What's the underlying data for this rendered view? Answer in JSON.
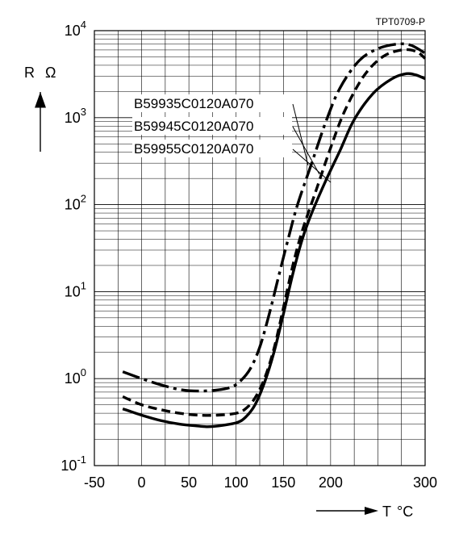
{
  "chart_data": {
    "type": "line",
    "title": "",
    "figure_id": "TPT0709-P",
    "y_scale": "log",
    "xlabel": "T",
    "xlabel_unit": "°C",
    "ylabel": "R",
    "ylabel_unit": "Ω",
    "xlim": [
      -50,
      300
    ],
    "ylim": [
      0.1,
      10000
    ],
    "grid": true,
    "x_ticks": [
      {
        "value": -50,
        "label": "-50"
      },
      {
        "value": 0,
        "label": "0"
      },
      {
        "value": 50,
        "label": "50"
      },
      {
        "value": 100,
        "label": "100"
      },
      {
        "value": 150,
        "label": "150"
      },
      {
        "value": 200,
        "label": "200"
      },
      {
        "value": 300,
        "label": "300"
      }
    ],
    "y_ticks": [
      {
        "value": 0.1,
        "base": "10",
        "exp": "-1"
      },
      {
        "value": 1,
        "base": "10",
        "exp": "0"
      },
      {
        "value": 10,
        "base": "10",
        "exp": "1"
      },
      {
        "value": 100,
        "base": "10",
        "exp": "2"
      },
      {
        "value": 1000,
        "base": "10",
        "exp": "3"
      },
      {
        "value": 10000,
        "base": "10",
        "exp": "4"
      }
    ],
    "series": [
      {
        "name": "B59935C0120A070",
        "style": "dash-dot",
        "x": [
          -20,
          0,
          20,
          40,
          60,
          80,
          95,
          105,
          115,
          125,
          135,
          145,
          155,
          165,
          180,
          195,
          210,
          230,
          250,
          270,
          285,
          300
        ],
        "y": [
          1.2,
          1.0,
          0.85,
          0.75,
          0.72,
          0.74,
          0.8,
          0.95,
          1.3,
          2.3,
          5.5,
          15,
          40,
          100,
          300,
          900,
          2200,
          4500,
          6200,
          7000,
          6800,
          5500
        ]
      },
      {
        "name": "B59945C0120A070",
        "style": "dashed",
        "x": [
          -20,
          0,
          20,
          40,
          60,
          80,
          100,
          110,
          120,
          130,
          140,
          150,
          160,
          170,
          185,
          200,
          215,
          235,
          255,
          275,
          290,
          300
        ],
        "y": [
          0.62,
          0.5,
          0.44,
          0.4,
          0.38,
          0.38,
          0.4,
          0.45,
          0.6,
          1.0,
          2.2,
          6.5,
          20,
          50,
          150,
          450,
          1200,
          3000,
          5000,
          6000,
          5800,
          4800
        ]
      },
      {
        "name": "B59955C0120A070",
        "style": "solid",
        "x": [
          -20,
          0,
          20,
          40,
          60,
          70,
          80,
          100,
          110,
          120,
          130,
          140,
          150,
          160,
          170,
          180,
          195,
          210,
          225,
          245,
          265,
          280,
          290,
          300
        ],
        "y": [
          0.45,
          0.38,
          0.33,
          0.3,
          0.285,
          0.28,
          0.285,
          0.31,
          0.36,
          0.5,
          0.9,
          2.0,
          5.5,
          16,
          40,
          80,
          190,
          420,
          950,
          1900,
          2800,
          3200,
          3100,
          2800
        ]
      }
    ],
    "legend_labels": [
      "B59935C0120A070",
      "B59945C0120A070",
      "B59955C0120A070"
    ]
  }
}
